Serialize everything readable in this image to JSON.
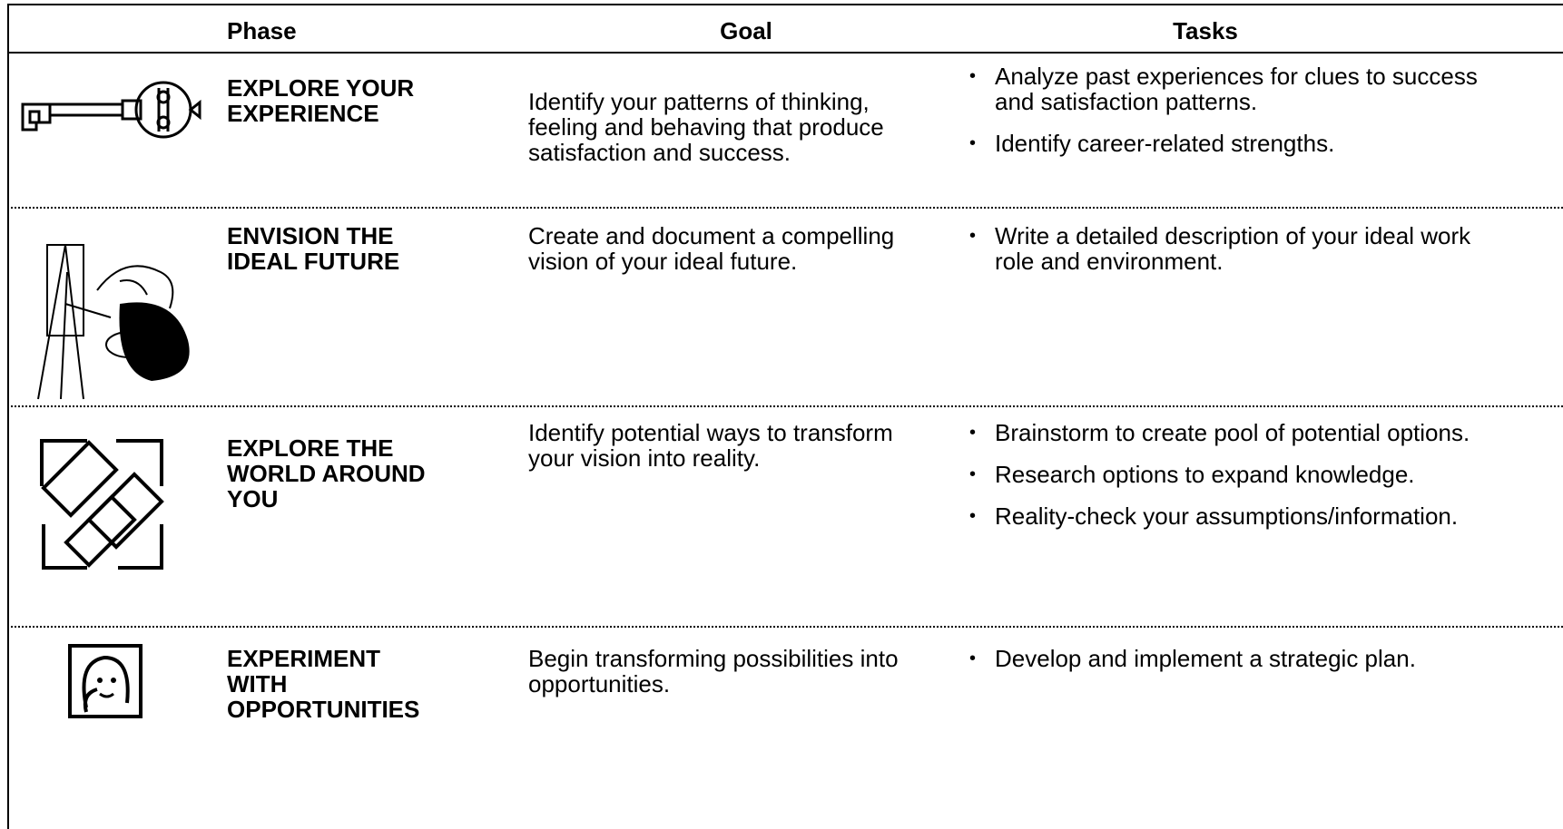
{
  "header": {
    "columns": [
      "Phase",
      "Goal",
      "Tasks"
    ]
  },
  "table": {
    "rows": [
      {
        "phase": [
          "EXPLORE YOUR",
          "EXPERIENCE"
        ],
        "goal": "Identify your patterns of thinking, feeling and behaving that produce satisfaction and success.",
        "tasks": [
          "Analyze past experiences for clues to success and satisfaction patterns.",
          "Identify career-related strengths."
        ]
      },
      {
        "phase": [
          "ENVISION THE",
          "IDEAL FUTURE"
        ],
        "goal": "Create and document a compelling vision of your ideal future.",
        "tasks": [
          "Write a detailed description of your ideal work role and environment."
        ]
      },
      {
        "phase": [
          "EXPLORE THE",
          "WORLD AROUND",
          "YOU"
        ],
        "goal": "Identify potential ways to transform your vision into reality.",
        "tasks": [
          "Brainstorm to create pool of potential options.",
          "Research options to expand knowledge.",
          "Reality-check your assumptions/information."
        ]
      },
      {
        "phase": [
          "EXPERIMENT",
          "WITH",
          "OPPORTUNITIES"
        ],
        "goal": "Begin transforming possibilities into opportunities.",
        "tasks": [
          "Develop and implement a strategic plan."
        ]
      }
    ]
  }
}
